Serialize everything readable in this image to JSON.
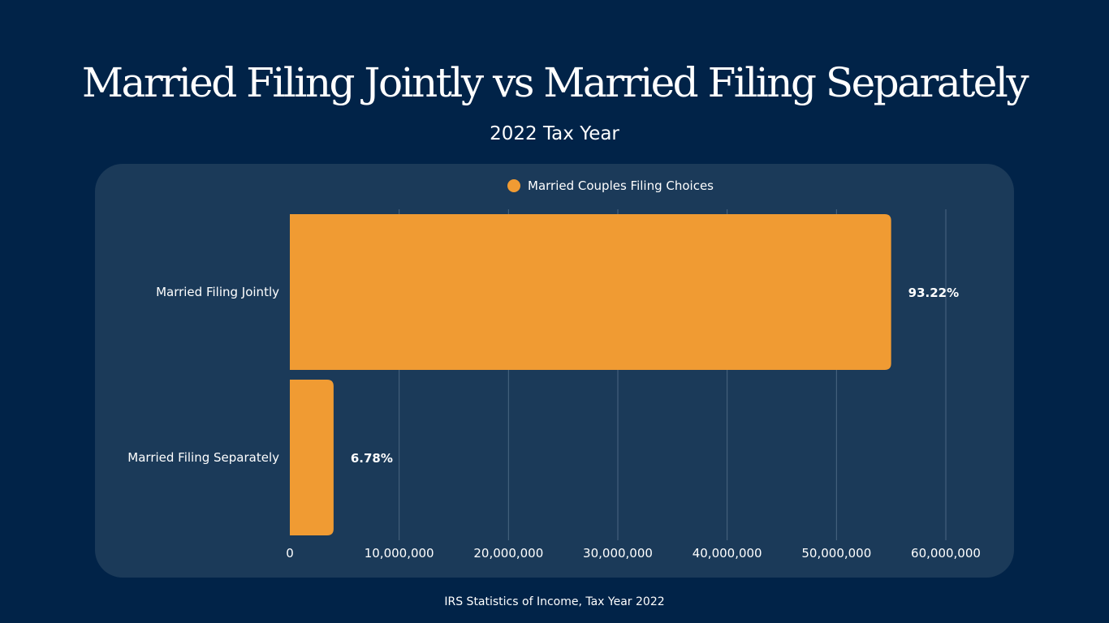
{
  "chart_data": {
    "type": "bar",
    "orientation": "horizontal",
    "title": "Married Filing Jointly vs Married Filing Separately",
    "subtitle": "2022 Tax Year",
    "categories": [
      "Married Filing Jointly",
      "Married Filing Separately"
    ],
    "series": [
      {
        "name": "Married Couples Filing Choices",
        "values": [
          55000000,
          4000000
        ],
        "data_labels": [
          "93.22%",
          "6.78%"
        ],
        "color": "#f09b33"
      }
    ],
    "x_ticks": [
      "0",
      "10,000,000",
      "20,000,000",
      "30,000,000",
      "40,000,000",
      "50,000,000",
      "60,000,000"
    ],
    "xlim": [
      0,
      60000000
    ],
    "grid": true,
    "legend_position": "top-center",
    "source": "IRS Statistics of Income, Tax Year 2022"
  },
  "colors": {
    "background": "#012348",
    "panel": "#1b3a59",
    "bar": "#f09b33",
    "gridline": "#4b6782",
    "text": "#ffffff"
  }
}
